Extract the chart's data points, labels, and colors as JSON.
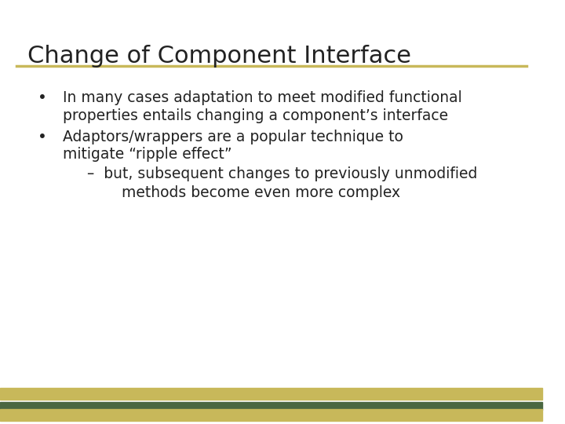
{
  "title": "Change of Component Interface",
  "title_fontsize": 22,
  "title_color": "#222222",
  "background_color": "#ffffff",
  "title_line_color": "#c8b85a",
  "bottom_stripe_colors": [
    "#c8b85a",
    "#4a6741",
    "#c8b85a"
  ],
  "bullet1_line1": "In many cases adaptation to meet modified functional",
  "bullet1_line2": "properties entails changing a component’s interface",
  "bullet2_line1": "Adaptors/wrappers are a popular technique to",
  "bullet2_line2": "mitigate “ripple effect”",
  "sub_line1": "–  but, subsequent changes to previously unmodified",
  "sub_line2": "    methods become even more complex",
  "text_color": "#222222",
  "body_fontsize": 13.5,
  "font_family": "DejaVu Sans"
}
